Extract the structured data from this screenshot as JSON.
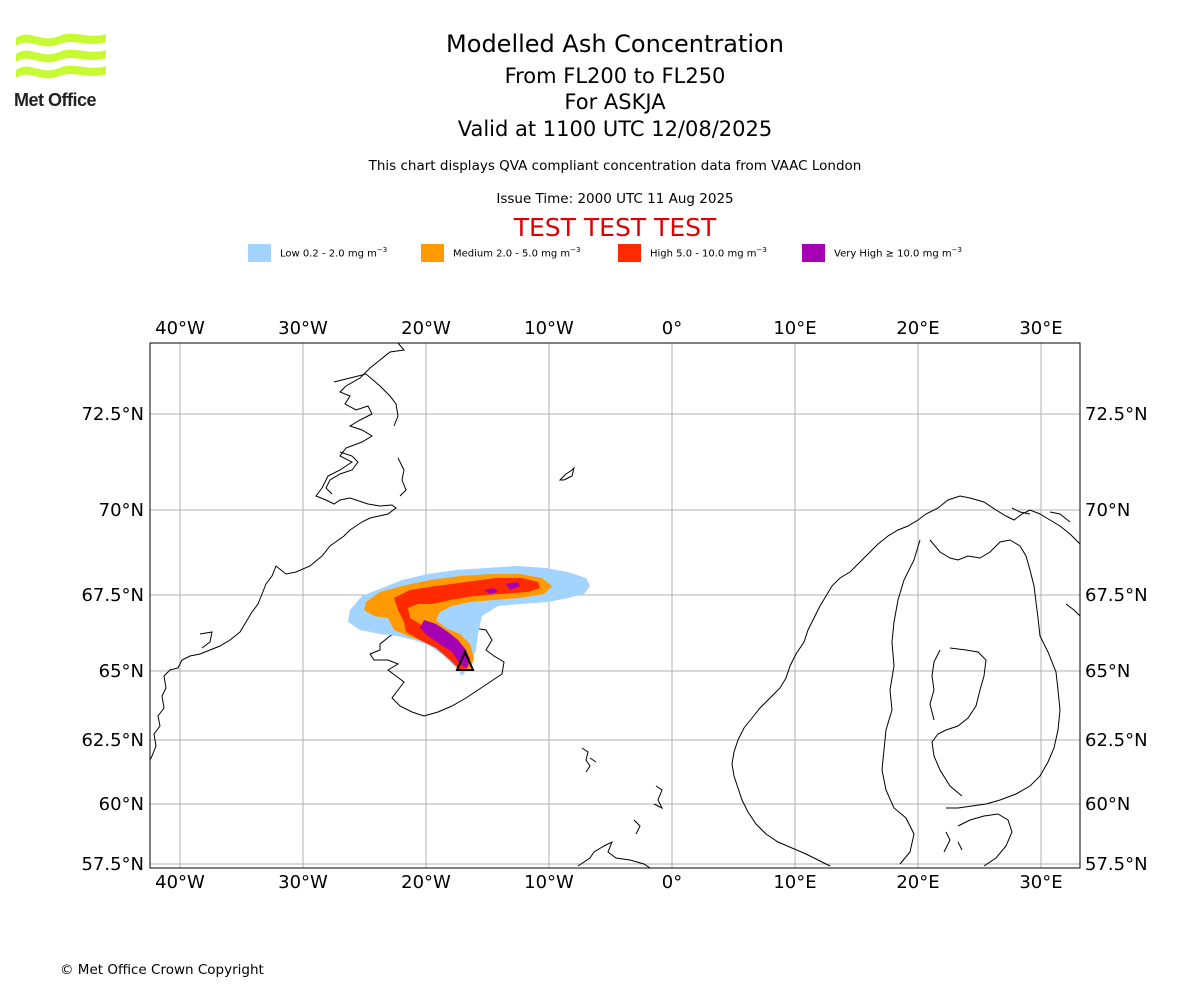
{
  "logo": {
    "text": "Met Office",
    "color": "#c8fa32"
  },
  "title": "Modelled Ash Concentration",
  "subtitle_levels": "From FL200 to FL250",
  "subtitle_volcano": "For ASKJA",
  "subtitle_valid": "Valid at 1100 UTC 12/08/2025",
  "note": "This chart displays QVA compliant concentration data from VAAC London",
  "issue_time": "Issue Time: 2000 UTC 11 Aug 2025",
  "test_banner": "TEST TEST TEST",
  "legend": [
    {
      "label": "Low 0.2 - 2.0 mg m",
      "color": "#a3d4ff"
    },
    {
      "label": "Medium 2.0 - 5.0 mg m",
      "color": "#ff9a00"
    },
    {
      "label": "High 5.0 - 10.0 mg m",
      "color": "#ff2a00"
    },
    {
      "label": "Very High ≥ 10.0 mg m",
      "color": "#a600b4"
    }
  ],
  "legend_unit_exponent": "−3",
  "map": {
    "lon_labels": [
      "40°W",
      "30°W",
      "20°W",
      "10°W",
      "0°",
      "10°E",
      "20°E",
      "30°E"
    ],
    "lat_labels": [
      "72.5°N",
      "70°N",
      "67.5°N",
      "65°N",
      "62.5°N",
      "60°N",
      "57.5°N"
    ],
    "grid": true,
    "volcano_marker": "triangle"
  },
  "copyright": "© Met Office Crown Copyright"
}
